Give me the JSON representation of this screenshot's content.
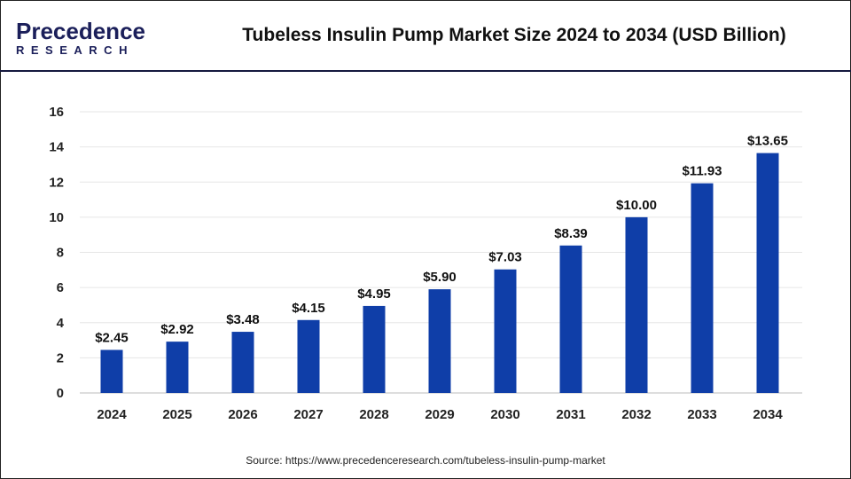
{
  "logo": {
    "line1": "Precedence",
    "line2": "RESEARCH"
  },
  "chart_data": {
    "type": "bar",
    "title": "Tubeless Insulin Pump Market Size 2024 to 2034 (USD Billion)",
    "categories": [
      "2024",
      "2025",
      "2026",
      "2027",
      "2028",
      "2029",
      "2030",
      "2031",
      "2032",
      "2033",
      "2034"
    ],
    "values": [
      2.45,
      2.92,
      3.48,
      4.15,
      4.95,
      5.9,
      7.03,
      8.39,
      10.0,
      11.93,
      13.65
    ],
    "data_labels": [
      "$2.45",
      "$2.92",
      "$3.48",
      "$4.15",
      "$4.95",
      "$5.90",
      "$7.03",
      "$8.39",
      "$10.00",
      "$11.93",
      "$13.65"
    ],
    "yticks": [
      "0",
      "2",
      "4",
      "6",
      "8",
      "10",
      "12",
      "14",
      "16"
    ],
    "ylim": [
      0,
      16
    ],
    "grid": true,
    "bar_color": "#0f3ea8",
    "xlabel": "",
    "ylabel": ""
  },
  "source": "Source: https://www.precedenceresearch.com/tubeless-insulin-pump-market"
}
